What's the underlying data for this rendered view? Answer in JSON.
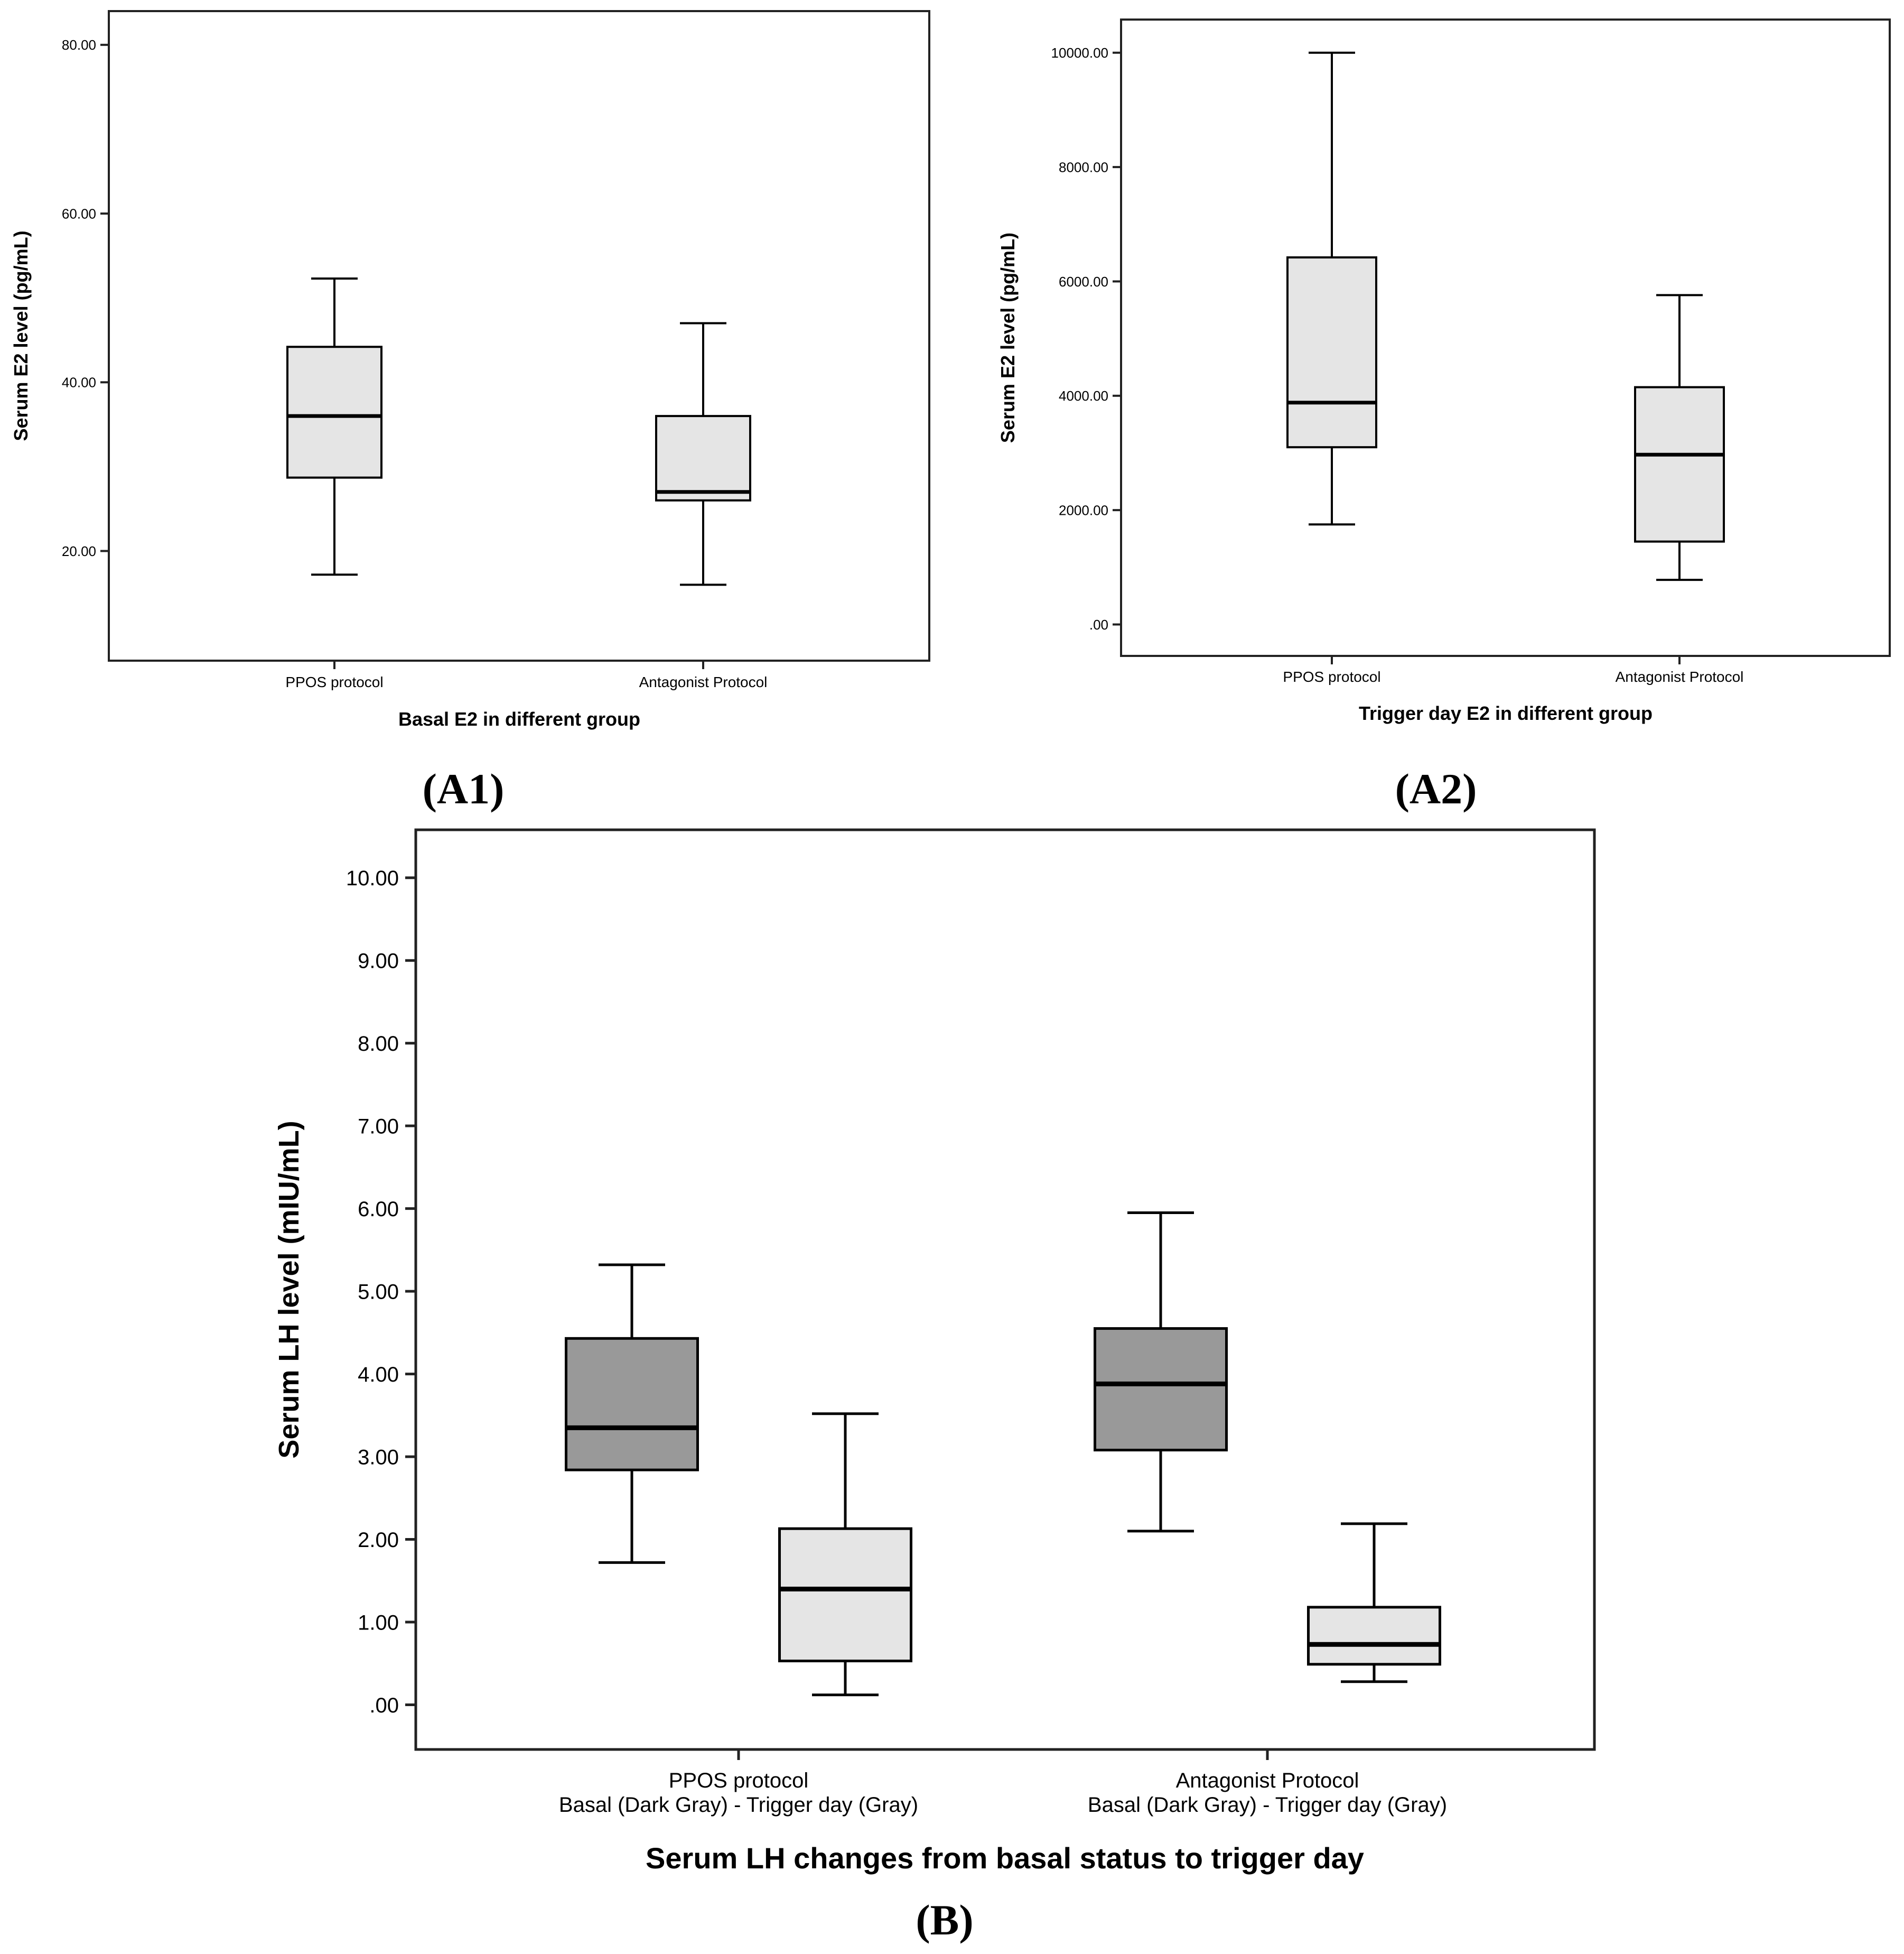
{
  "chart_data": [
    {
      "id": "A1",
      "type": "box",
      "panel_label": "(A1)",
      "title": "",
      "xlabel": "Basal E2 in different group",
      "ylabel": "Serum E2 level (pg/mL)",
      "ylim": [
        7,
        84
      ],
      "yticks": [
        {
          "value": 20,
          "label": "20.00"
        },
        {
          "value": 40,
          "label": "40.00"
        },
        {
          "value": 60,
          "label": "60.00"
        },
        {
          "value": 80,
          "label": "80.00"
        }
      ],
      "categories": [
        "PPOS protocol",
        "Antagonist Protocol"
      ],
      "boxes": [
        {
          "category": 0,
          "min": 17.2,
          "q1": 28.7,
          "median": 36.0,
          "q3": 44.2,
          "max": 52.3,
          "fill": "#e5e5e5"
        },
        {
          "category": 1,
          "min": 16.0,
          "q1": 26.0,
          "median": 27.0,
          "q3": 36.0,
          "max": 47.0,
          "fill": "#e5e5e5"
        }
      ]
    },
    {
      "id": "A2",
      "type": "box",
      "panel_label": "(A2)",
      "title": "",
      "xlabel": "Trigger day E2 in different group",
      "ylabel": "Serum E2 level (pg/mL)",
      "ylim": [
        -550,
        10580
      ],
      "yticks": [
        {
          "value": 0,
          "label": ".00"
        },
        {
          "value": 2000,
          "label": "2000.00"
        },
        {
          "value": 4000,
          "label": "4000.00"
        },
        {
          "value": 6000,
          "label": "6000.00"
        },
        {
          "value": 8000,
          "label": "8000.00"
        },
        {
          "value": 10000,
          "label": "10000.00"
        }
      ],
      "categories": [
        "PPOS protocol",
        "Antagonist Protocol"
      ],
      "boxes": [
        {
          "category": 0,
          "min": 1750,
          "q1": 3100,
          "median": 3880,
          "q3": 6420,
          "max": 10000,
          "fill": "#e5e5e5"
        },
        {
          "category": 1,
          "min": 780,
          "q1": 1450,
          "median": 2970,
          "q3": 4150,
          "max": 5760,
          "fill": "#e5e5e5"
        }
      ]
    },
    {
      "id": "B",
      "type": "box",
      "panel_label": "(B)",
      "title": "",
      "xlabel": "Serum LH changes from basal status to trigger day",
      "ylabel": "Serum LH level (mIU/mL)",
      "ylim": [
        -0.54,
        10.58
      ],
      "yticks": [
        {
          "value": 0,
          "label": ".00"
        },
        {
          "value": 1,
          "label": "1.00"
        },
        {
          "value": 2,
          "label": "2.00"
        },
        {
          "value": 3,
          "label": "3.00"
        },
        {
          "value": 4,
          "label": "4.00"
        },
        {
          "value": 5,
          "label": "5.00"
        },
        {
          "value": 6,
          "label": "6.00"
        },
        {
          "value": 7,
          "label": "7.00"
        },
        {
          "value": 8,
          "label": "8.00"
        },
        {
          "value": 9,
          "label": "9.00"
        },
        {
          "value": 10,
          "label": "10.00"
        }
      ],
      "categories": [
        {
          "line1": "PPOS protocol",
          "line2": "Basal (Dark Gray) - Trigger day (Gray)"
        },
        {
          "line1": "Antagonist Protocol",
          "line2": "Basal (Dark Gray) - Trigger day (Gray)"
        }
      ],
      "boxes": [
        {
          "category": 0,
          "offset": -1,
          "series": "Basal",
          "min": 1.72,
          "q1": 2.84,
          "median": 3.35,
          "q3": 4.43,
          "max": 5.32,
          "fill": "#999999"
        },
        {
          "category": 0,
          "offset": 1,
          "series": "Trigger day",
          "min": 0.12,
          "q1": 0.53,
          "median": 1.4,
          "q3": 2.13,
          "max": 3.52,
          "fill": "#e5e5e5"
        },
        {
          "category": 1,
          "offset": -1,
          "series": "Basal",
          "min": 2.1,
          "q1": 3.08,
          "median": 3.88,
          "q3": 4.55,
          "max": 5.95,
          "fill": "#999999"
        },
        {
          "category": 1,
          "offset": 1,
          "series": "Trigger day",
          "min": 0.28,
          "q1": 0.49,
          "median": 0.73,
          "q3": 1.18,
          "max": 2.19,
          "fill": "#e5e5e5"
        }
      ]
    }
  ]
}
